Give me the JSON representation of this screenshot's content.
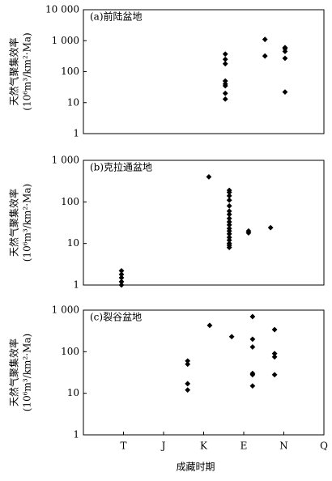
{
  "chart_data": [
    {
      "type": "scatter",
      "title": "(a)前陆盆地",
      "ylabel": [
        "天然气聚集效率",
        "(10⁶m³/km²·Ma)"
      ],
      "log_y": true,
      "xlim": [
        0,
        6
      ],
      "ylim": [
        1,
        10000
      ],
      "yticks": [
        1,
        10,
        100,
        {
          "value": 1000,
          "label": "1 000"
        },
        {
          "value": 10000,
          "label": "10 000"
        }
      ],
      "series": [
        {
          "color": "#000000",
          "x": [
            3.54,
            3.54,
            3.54,
            3.54,
            3.54,
            3.54,
            3.54,
            3.54,
            4.53,
            4.53,
            5.03,
            5.03,
            5.03,
            5.03,
            5.03
          ],
          "values": [
            370,
            250,
            180,
            50,
            40,
            35,
            20,
            13,
            1100,
            320,
            600,
            550,
            450,
            270,
            22
          ]
        }
      ]
    },
    {
      "type": "scatter",
      "title": "(b)克拉通盆地",
      "ylabel": [
        "天然气聚集效率",
        "(10⁶m³/km²·Ma)"
      ],
      "log_y": true,
      "xlim": [
        0,
        6
      ],
      "ylim": [
        1,
        1000
      ],
      "yticks": [
        1,
        10,
        100,
        {
          "value": 1000,
          "label": "1 000"
        }
      ],
      "series": [
        {
          "color": "#000000",
          "x": [
            0.95,
            0.95,
            0.95,
            0.95,
            0.95,
            3.13,
            3.64,
            3.64,
            3.64,
            3.64,
            3.64,
            3.64,
            3.64,
            3.64,
            3.64,
            3.64,
            3.64,
            3.64,
            3.64,
            3.64,
            3.64,
            3.64,
            3.64,
            3.64,
            4.12,
            4.12,
            4.67
          ],
          "values": [
            2.2,
            1.8,
            1.5,
            1.2,
            1,
            400,
            190,
            170,
            140,
            110,
            80,
            60,
            50,
            40,
            33,
            28,
            23,
            20,
            17,
            14,
            12,
            10,
            9,
            8,
            20,
            18,
            24
          ]
        }
      ]
    },
    {
      "type": "scatter",
      "title": "(c)裂谷盆地",
      "ylabel": [
        "天然气聚集效率",
        "(10⁶m³/km²·Ma)"
      ],
      "log_y": true,
      "xlim": [
        0,
        6
      ],
      "ylim": [
        1,
        1000
      ],
      "yticks": [
        1,
        10,
        100,
        {
          "value": 1000,
          "label": "1 000"
        }
      ],
      "xticks": [
        {
          "value": 1,
          "label": "T"
        },
        {
          "value": 2,
          "label": "J"
        },
        {
          "value": 3,
          "label": "K"
        },
        {
          "value": 4,
          "label": "E"
        },
        {
          "value": 5,
          "label": "N"
        },
        {
          "value": 6,
          "label": "Q"
        }
      ],
      "xlabel": "成藏时期",
      "series": [
        {
          "color": "#000000",
          "x": [
            2.6,
            2.6,
            2.6,
            2.6,
            3.15,
            3.7,
            4.22,
            4.22,
            4.22,
            4.22,
            4.22,
            4.22,
            4.77,
            4.77,
            4.77,
            4.77
          ],
          "values": [
            60,
            50,
            17,
            12,
            430,
            230,
            700,
            200,
            130,
            30,
            28,
            15,
            340,
            90,
            75,
            28
          ]
        }
      ]
    }
  ]
}
